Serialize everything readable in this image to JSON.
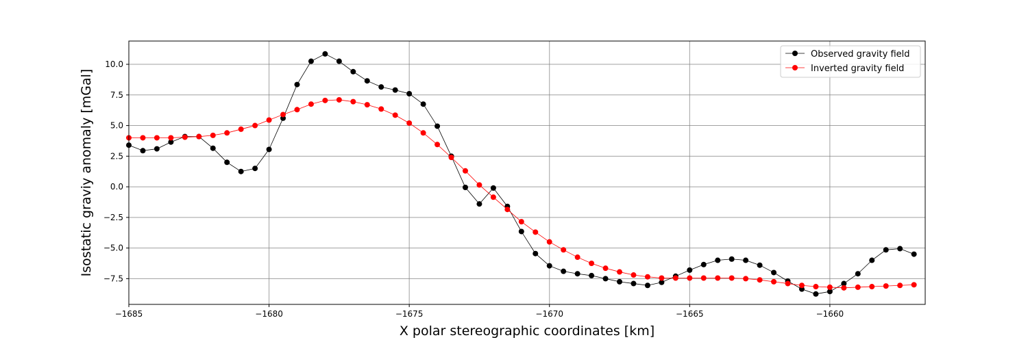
{
  "chart_data": {
    "type": "line",
    "title": "",
    "xlabel": "X polar stereographic coordinates [km]",
    "ylabel": "Isostatic graviy anomaly [mGal]",
    "xlim": [
      -1685,
      -1656.6
    ],
    "ylim": [
      -9.6,
      11.9
    ],
    "xticks": [
      -1685,
      -1680,
      -1675,
      -1670,
      -1665,
      -1660
    ],
    "xtick_labels": [
      "−1685",
      "−1680",
      "−1675",
      "−1670",
      "−1665",
      "−1660"
    ],
    "yticks": [
      -7.5,
      -5.0,
      -2.5,
      0.0,
      2.5,
      5.0,
      7.5,
      10.0
    ],
    "ytick_labels": [
      "−7.5",
      "−5.0",
      "−2.5",
      "0.0",
      "2.5",
      "5.0",
      "7.5",
      "10.0"
    ],
    "grid": true,
    "legend_position": "top-right",
    "x": [
      -1685,
      -1684.5,
      -1684,
      -1683.5,
      -1683,
      -1682.5,
      -1682,
      -1681.5,
      -1681,
      -1680.5,
      -1680,
      -1679.5,
      -1679,
      -1678.5,
      -1678,
      -1677.5,
      -1677,
      -1676.5,
      -1676,
      -1675.5,
      -1675,
      -1674.5,
      -1674,
      -1673.5,
      -1673,
      -1672.5,
      -1672,
      -1671.5,
      -1671,
      -1670.5,
      -1670,
      -1669.5,
      -1669,
      -1668.5,
      -1668,
      -1667.5,
      -1667,
      -1666.5,
      -1666,
      -1665.5,
      -1665,
      -1664.5,
      -1664,
      -1663.5,
      -1663,
      -1662.5,
      -1662,
      -1661.5,
      -1661,
      -1660.5,
      -1660,
      -1659.5,
      -1659,
      -1658.5,
      -1658,
      -1657.5,
      -1657
    ],
    "series": [
      {
        "name": "Observed gravity field",
        "color": "#000000",
        "values": [
          3.4,
          2.95,
          3.1,
          3.65,
          4.1,
          4.1,
          3.15,
          2.0,
          1.25,
          1.5,
          3.05,
          5.6,
          8.35,
          10.25,
          10.85,
          10.25,
          9.4,
          8.65,
          8.15,
          7.9,
          7.6,
          6.75,
          4.95,
          2.5,
          -0.05,
          -1.4,
          -0.1,
          -1.6,
          -3.65,
          -5.45,
          -6.45,
          -6.9,
          -7.1,
          -7.25,
          -7.5,
          -7.75,
          -7.9,
          -8.05,
          -7.8,
          -7.3,
          -6.8,
          -6.35,
          -6.0,
          -5.9,
          -6.0,
          -6.4,
          -7.0,
          -7.7,
          -8.35,
          -8.75,
          -8.55,
          -7.9,
          -7.1,
          -6.0,
          -5.15,
          -5.05,
          -5.5
        ]
      },
      {
        "name": "Inverted gravity field",
        "color": "#ff0000",
        "values": [
          4.0,
          4.0,
          4.0,
          4.0,
          4.05,
          4.1,
          4.2,
          4.4,
          4.7,
          5.0,
          5.45,
          5.9,
          6.3,
          6.75,
          7.05,
          7.1,
          6.95,
          6.7,
          6.35,
          5.85,
          5.2,
          4.4,
          3.45,
          2.4,
          1.3,
          0.15,
          -0.85,
          -1.85,
          -2.85,
          -3.7,
          -4.5,
          -5.15,
          -5.75,
          -6.25,
          -6.65,
          -6.95,
          -7.2,
          -7.35,
          -7.45,
          -7.45,
          -7.45,
          -7.45,
          -7.45,
          -7.45,
          -7.5,
          -7.6,
          -7.75,
          -7.9,
          -8.05,
          -8.15,
          -8.2,
          -8.25,
          -8.2,
          -8.15,
          -8.1,
          -8.05,
          -8.0
        ]
      }
    ]
  }
}
